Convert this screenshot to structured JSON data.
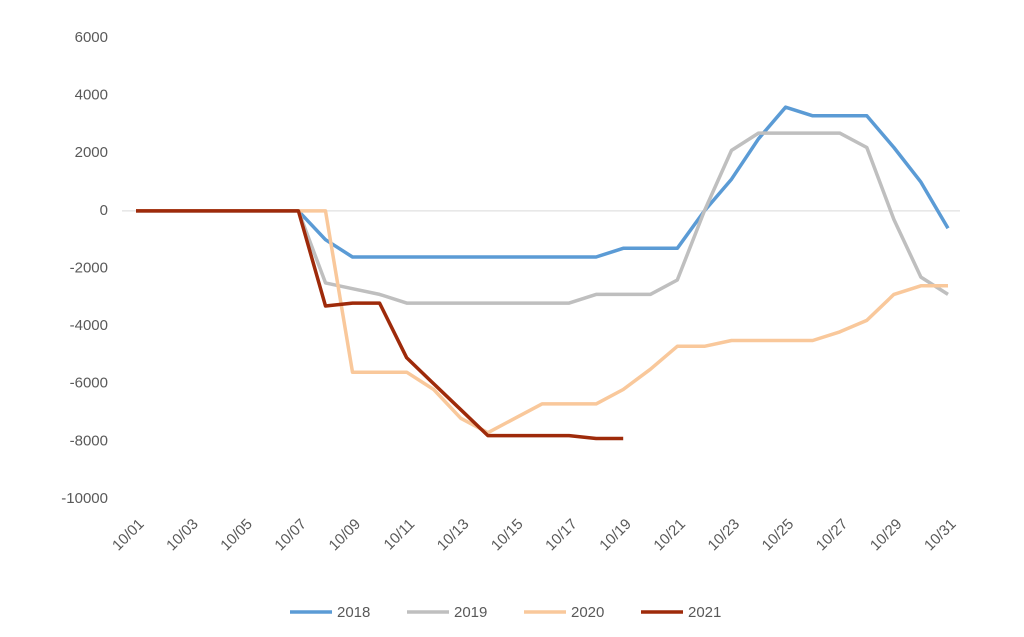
{
  "chart_data": {
    "type": "line",
    "categories": [
      "10/01",
      null,
      "10/03",
      null,
      "10/05",
      null,
      "10/07",
      null,
      "10/09",
      null,
      "10/11",
      null,
      "10/13",
      null,
      "10/15",
      null,
      "10/17",
      null,
      "10/19",
      null,
      "10/21",
      null,
      "10/23",
      null,
      "10/25",
      null,
      "10/27",
      null,
      "10/29",
      null,
      "10/31"
    ],
    "series": [
      {
        "name": "2018",
        "color": "#5b9bd5",
        "values": [
          0,
          0,
          0,
          0,
          0,
          0,
          0,
          -1000,
          -1600,
          -1600,
          -1600,
          -1600,
          -1600,
          -1600,
          -1600,
          -1600,
          -1600,
          -1600,
          -1300,
          -1300,
          -1300,
          0,
          1100,
          2500,
          3600,
          3300,
          3300,
          3300,
          2200,
          1000,
          -600
        ]
      },
      {
        "name": "2019",
        "color": "#bfbfbf",
        "values": [
          0,
          0,
          0,
          0,
          0,
          0,
          0,
          -2500,
          -2700,
          -2900,
          -3200,
          -3200,
          -3200,
          -3200,
          -3200,
          -3200,
          -3200,
          -2900,
          -2900,
          -2900,
          -2400,
          0,
          2100,
          2700,
          2700,
          2700,
          2700,
          2200,
          -300,
          -2300,
          -2900
        ]
      },
      {
        "name": "2020",
        "color": "#f9c89b",
        "values": [
          0,
          0,
          0,
          0,
          0,
          0,
          0,
          0,
          -5600,
          -5600,
          -5600,
          -6200,
          -7200,
          -7700,
          -7200,
          -6700,
          -6700,
          -6700,
          -6200,
          -5500,
          -4700,
          -4700,
          -4500,
          -4500,
          -4500,
          -4500,
          -4200,
          -3800,
          -2900,
          -2600,
          -2600
        ]
      },
      {
        "name": "2021",
        "color": "#9e2a0a",
        "values": [
          0,
          0,
          0,
          0,
          0,
          0,
          0,
          -3300,
          -3200,
          -3200,
          -5100,
          -6000,
          -6900,
          -7800,
          -7800,
          -7800,
          -7800,
          -7900,
          -7900,
          null,
          null,
          null,
          null,
          null,
          null,
          null,
          null,
          null,
          null,
          null,
          null
        ]
      }
    ],
    "ylim": [
      -10000,
      6000
    ],
    "yticks": [
      -10000,
      -8000,
      -6000,
      -4000,
      -2000,
      0,
      2000,
      4000,
      6000
    ],
    "grid": false,
    "legend": "bottom"
  }
}
